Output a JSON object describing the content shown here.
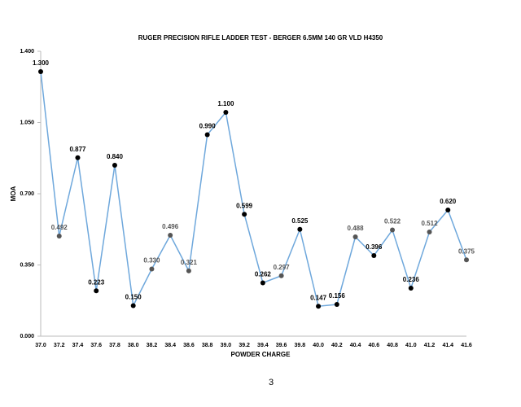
{
  "chart_data": {
    "type": "line",
    "title": "RUGER PRECISION RIFLE LADDER TEST - BERGER 6.5MM 140 GR VLD H4350",
    "x_label": "POWDER CHARGE",
    "y_label": "MOA",
    "categories": [
      "37.0",
      "37.2",
      "37.4",
      "37.6",
      "37.8",
      "38.0",
      "38.2",
      "38.4",
      "38.6",
      "38.8",
      "39.0",
      "39.2",
      "39.4",
      "39.6",
      "39.8",
      "40.0",
      "40.2",
      "40.4",
      "40.6",
      "40.8",
      "41.0",
      "41.2",
      "41.4",
      "41.6"
    ],
    "values": [
      1.3,
      0.492,
      0.877,
      0.223,
      0.84,
      0.15,
      0.33,
      0.496,
      0.321,
      0.99,
      1.1,
      0.599,
      0.262,
      0.297,
      0.525,
      0.147,
      0.156,
      0.488,
      0.396,
      0.522,
      0.236,
      0.512,
      0.62,
      0.375
    ],
    "value_labels": [
      "1.300",
      "0.492",
      "0.877",
      "0.223",
      "0.840",
      "0.150",
      "0.330",
      "0.496",
      "0.321",
      "0.990",
      "1.100",
      "0.599",
      "0.262",
      "0.297",
      "0.525",
      "0.147",
      "0.156",
      "0.488",
      "0.396",
      "0.522",
      "0.236",
      "0.512",
      "0.620",
      "0.375"
    ],
    "marker_colors": [
      "#000",
      "#555",
      "#000",
      "#000",
      "#000",
      "#000",
      "#555",
      "#555",
      "#555",
      "#000",
      "#000",
      "#000",
      "#000",
      "#555",
      "#000",
      "#000",
      "#000",
      "#555",
      "#000",
      "#555",
      "#000",
      "#555",
      "#000",
      "#555"
    ],
    "color": "#6fa8dc",
    "ylim": [
      0,
      1.4
    ],
    "yticks": [
      {
        "value": 0,
        "label": "0.000"
      },
      {
        "value": 0.35,
        "label": "0.350"
      },
      {
        "value": 0.7,
        "label": "0.700"
      },
      {
        "value": 1.05,
        "label": "1.050"
      },
      {
        "value": 1.4,
        "label": "1.400"
      }
    ]
  },
  "page_number": "3"
}
